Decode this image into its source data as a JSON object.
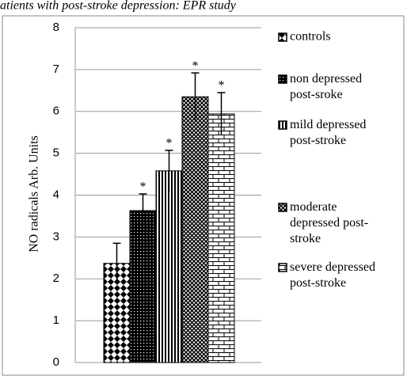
{
  "chart_data": {
    "type": "bar",
    "title": "atients with post-stroke depression: EPR study",
    "y_label": "NO radicals Arb. Units",
    "ylim": [
      0,
      8
    ],
    "yticks": [
      0,
      1,
      2,
      3,
      4,
      5,
      6,
      7,
      8
    ],
    "grid": true,
    "legend": "right",
    "series": [
      {
        "name": "controls",
        "color": "#000000",
        "values": [
          2.37
        ],
        "errors": [
          0.48
        ]
      },
      {
        "name": "non depressed\npost-sroke",
        "color": "#000000",
        "values": [
          3.63
        ],
        "errors": [
          0.4
        ],
        "annotation": "*"
      },
      {
        "name": "mild depressed\npost-stroke",
        "color": "#000000",
        "values": [
          4.58
        ],
        "errors": [
          0.49
        ],
        "annotation": "*"
      },
      {
        "name": "moderate\ndepressed post-\nstroke",
        "color": "#000000",
        "values": [
          6.35
        ],
        "errors": [
          0.57
        ],
        "annotation": "*"
      },
      {
        "name": "severe depressed\npost-stroke",
        "color": "#000000",
        "values": [
          5.94
        ],
        "errors": [
          0.51
        ],
        "annotation": "*"
      }
    ]
  }
}
